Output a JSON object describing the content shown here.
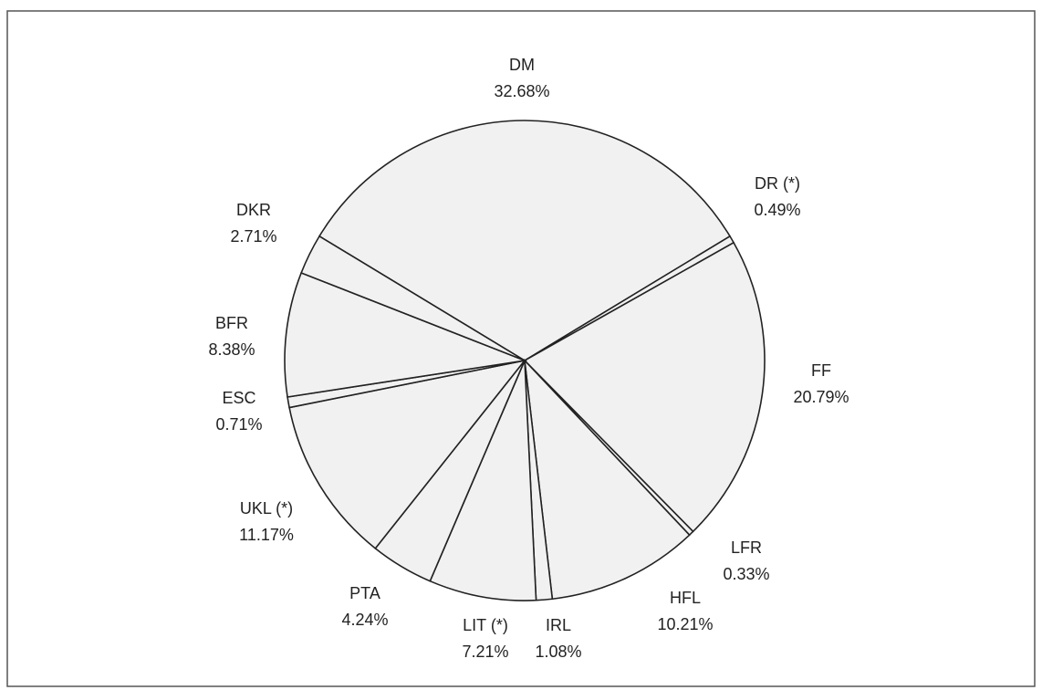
{
  "chart_data": {
    "type": "pie",
    "categories": [
      "DM",
      "DR (*)",
      "FF",
      "LFR",
      "HFL",
      "IRL",
      "LIT (*)",
      "PTA",
      "UKL (*)",
      "ESC",
      "BFR",
      "DKR"
    ],
    "values": [
      32.68,
      0.49,
      20.79,
      0.33,
      10.21,
      1.08,
      7.21,
      4.24,
      11.17,
      0.71,
      8.38,
      2.71
    ],
    "value_labels": [
      "32.68%",
      "0.49%",
      "20.79%",
      "0.33%",
      "10.21%",
      "1.08%",
      "7.21%",
      "4.24%",
      "11.17%",
      "0.71%",
      "8.38%",
      "2.71%"
    ],
    "color": "#f1f1f1"
  }
}
